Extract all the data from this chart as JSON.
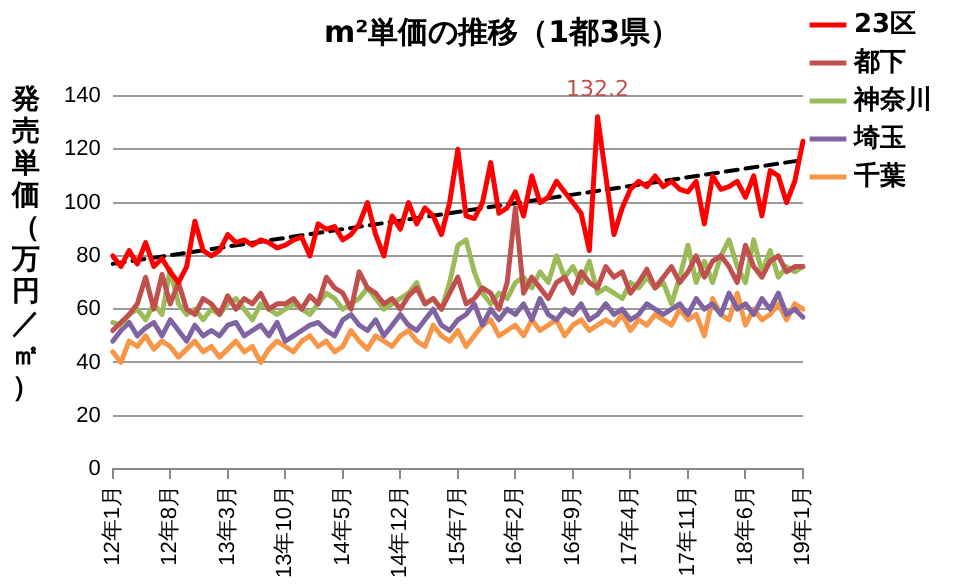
{
  "chart_data": {
    "type": "line",
    "title": "m²単価の推移（1都3県）",
    "ylabel": "発売単価（万円／㎡）",
    "categories": [
      "12年1月",
      null,
      null,
      null,
      null,
      null,
      null,
      "12年8月",
      null,
      null,
      null,
      null,
      null,
      null,
      "13年3月",
      null,
      null,
      null,
      null,
      null,
      null,
      "13年10月",
      null,
      null,
      null,
      null,
      null,
      null,
      "14年5月",
      null,
      null,
      null,
      null,
      null,
      null,
      "14年12月",
      null,
      null,
      null,
      null,
      null,
      null,
      "15年7月",
      null,
      null,
      null,
      null,
      null,
      null,
      "16年2月",
      null,
      null,
      null,
      null,
      null,
      null,
      "16年9月",
      null,
      null,
      null,
      null,
      null,
      null,
      "17年4月",
      null,
      null,
      null,
      null,
      null,
      null,
      "17年11月",
      null,
      null,
      null,
      null,
      null,
      null,
      "18年6月",
      null,
      null,
      null,
      null,
      null,
      null,
      "19年1月"
    ],
    "ylim": [
      0,
      140
    ],
    "yticks": [
      0,
      20,
      40,
      60,
      80,
      100,
      120,
      140
    ],
    "grid": "y",
    "legend": "right",
    "marker": "none",
    "series": [
      {
        "name": "23区",
        "color": "#ff0000",
        "values": [
          80,
          76,
          82,
          77,
          85,
          76,
          79,
          74,
          70,
          76,
          93,
          82,
          80,
          82,
          88,
          85,
          86,
          84,
          86,
          85,
          83,
          84,
          86,
          87,
          80,
          92,
          90,
          91,
          86,
          88,
          92,
          100,
          88,
          80,
          95,
          90,
          100,
          92,
          98,
          95,
          88,
          100,
          120,
          95,
          94,
          100,
          115,
          96,
          98,
          104,
          95,
          110,
          100,
          102,
          108,
          104,
          100,
          96,
          82,
          132.2,
          110,
          88,
          98,
          105,
          108,
          106,
          110,
          106,
          108,
          105,
          104,
          108,
          92,
          110,
          105,
          106,
          108,
          102,
          110,
          95,
          112,
          110,
          100,
          108,
          123
        ],
        "value_labels": [
          null,
          null,
          null,
          null,
          null,
          null,
          null,
          null,
          null,
          null,
          null,
          null,
          null,
          null,
          null,
          null,
          null,
          null,
          null,
          null,
          null,
          null,
          null,
          null,
          null,
          null,
          null,
          null,
          null,
          null,
          null,
          null,
          null,
          null,
          null,
          null,
          null,
          null,
          null,
          null,
          null,
          null,
          null,
          null,
          null,
          null,
          null,
          null,
          null,
          null,
          null,
          null,
          null,
          null,
          null,
          null,
          null,
          null,
          null,
          "132.2",
          null,
          null,
          null,
          null,
          null,
          null,
          null,
          null,
          null,
          null,
          null,
          null,
          null,
          null,
          null,
          null,
          null,
          null,
          null,
          null,
          null,
          null,
          null,
          null,
          null
        ]
      },
      {
        "name": "都下",
        "color": "#c0504d",
        "values": [
          52,
          55,
          58,
          62,
          72,
          60,
          73,
          62,
          70,
          60,
          58,
          64,
          62,
          58,
          65,
          60,
          64,
          62,
          66,
          60,
          62,
          62,
          64,
          60,
          65,
          62,
          72,
          68,
          66,
          60,
          74,
          68,
          66,
          62,
          64,
          60,
          65,
          68,
          62,
          64,
          60,
          66,
          72,
          62,
          64,
          68,
          66,
          60,
          70,
          98,
          66,
          72,
          68,
          64,
          70,
          72,
          66,
          74,
          70,
          68,
          76,
          72,
          74,
          66,
          70,
          75,
          68,
          72,
          76,
          70,
          74,
          80,
          72,
          78,
          80,
          76,
          70,
          84,
          76,
          72,
          78,
          80,
          74,
          76,
          76
        ]
      },
      {
        "name": "神奈川",
        "color": "#9bbb59",
        "values": [
          55,
          54,
          58,
          60,
          56,
          62,
          58,
          75,
          62,
          58,
          60,
          56,
          60,
          58,
          62,
          64,
          60,
          56,
          62,
          60,
          58,
          60,
          62,
          60,
          58,
          62,
          66,
          64,
          60,
          62,
          64,
          68,
          64,
          60,
          62,
          64,
          66,
          70,
          62,
          64,
          60,
          70,
          84,
          86,
          74,
          66,
          62,
          66,
          64,
          70,
          72,
          68,
          74,
          70,
          80,
          72,
          76,
          70,
          78,
          66,
          68,
          66,
          64,
          70,
          68,
          72,
          68,
          70,
          62,
          72,
          84,
          70,
          78,
          70,
          80,
          86,
          76,
          70,
          86,
          74,
          82,
          72,
          76,
          74,
          76
        ]
      },
      {
        "name": "埼玉",
        "color": "#8064a2",
        "values": [
          48,
          52,
          55,
          50,
          53,
          55,
          50,
          56,
          52,
          48,
          54,
          50,
          52,
          50,
          54,
          55,
          50,
          52,
          54,
          50,
          55,
          48,
          50,
          52,
          54,
          55,
          52,
          50,
          56,
          58,
          54,
          52,
          56,
          50,
          54,
          58,
          54,
          52,
          56,
          60,
          54,
          52,
          56,
          58,
          62,
          54,
          60,
          56,
          60,
          58,
          62,
          56,
          64,
          58,
          56,
          60,
          58,
          62,
          56,
          58,
          62,
          58,
          60,
          56,
          58,
          62,
          60,
          58,
          60,
          62,
          58,
          64,
          60,
          62,
          58,
          66,
          60,
          62,
          58,
          64,
          60,
          66,
          58,
          60,
          57
        ]
      },
      {
        "name": "千葉",
        "color": "#f79646",
        "values": [
          44,
          40,
          48,
          46,
          50,
          45,
          48,
          46,
          42,
          45,
          48,
          44,
          46,
          42,
          45,
          48,
          44,
          46,
          40,
          45,
          48,
          46,
          44,
          48,
          50,
          46,
          48,
          44,
          46,
          52,
          48,
          45,
          50,
          48,
          46,
          50,
          52,
          48,
          46,
          54,
          50,
          48,
          52,
          46,
          50,
          54,
          56,
          50,
          52,
          54,
          50,
          56,
          52,
          54,
          56,
          50,
          54,
          56,
          52,
          54,
          56,
          54,
          58,
          52,
          56,
          54,
          58,
          56,
          54,
          60,
          56,
          58,
          50,
          64,
          58,
          56,
          66,
          54,
          60,
          56,
          58,
          62,
          56,
          62,
          60
        ]
      },
      {
        "type": "line",
        "color": "#000000",
        "line_style": "dashed",
        "x": [
          "12年1月",
          "19年1月"
        ],
        "values": [
          77,
          116
        ]
      }
    ]
  }
}
